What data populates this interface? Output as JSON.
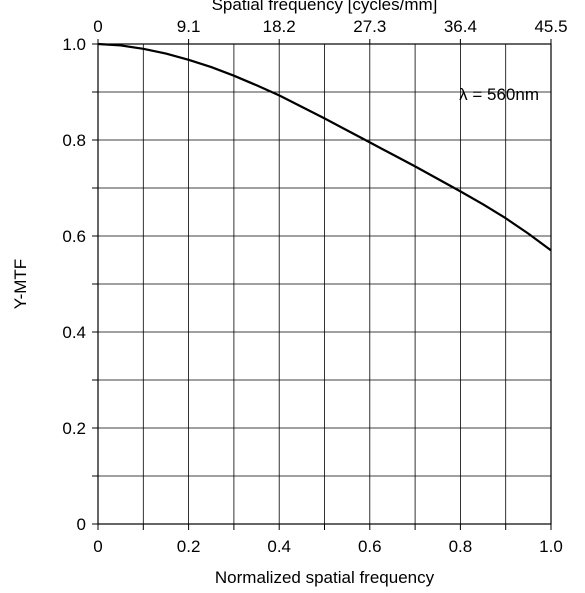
{
  "chart_data": {
    "type": "line",
    "title": "",
    "xlabel": "Normalized spatial frequency",
    "ylabel": "Y-MTF",
    "x2label": "Spatial frequency [cycles/mm]",
    "xlim": [
      0,
      1.0
    ],
    "ylim": [
      0,
      1.0
    ],
    "grid": true,
    "x_ticks": [
      0,
      0.1,
      0.2,
      0.3,
      0.4,
      0.5,
      0.6,
      0.7,
      0.8,
      0.9,
      1.0
    ],
    "x_tick_labels": [
      "0",
      "",
      "0.2",
      "",
      "0.4",
      "",
      "0.6",
      "",
      "0.8",
      "",
      "1.0"
    ],
    "y_ticks": [
      0,
      0.1,
      0.2,
      0.3,
      0.4,
      0.5,
      0.6,
      0.7,
      0.8,
      0.9,
      1.0
    ],
    "y_tick_labels": [
      "0",
      "",
      "0.2",
      "",
      "0.4",
      "",
      "0.6",
      "",
      "0.8",
      "",
      "1.0"
    ],
    "x2_ticks": [
      0,
      0.2,
      0.4,
      0.6,
      0.8,
      1.0
    ],
    "x2_tick_labels": [
      "0",
      "9.1",
      "18.2",
      "27.3",
      "36.4",
      "45.5"
    ],
    "annotation": "λ = 560nm",
    "series": [
      {
        "x": [
          0,
          0.05,
          0.1,
          0.15,
          0.2,
          0.25,
          0.3,
          0.35,
          0.4,
          0.45,
          0.5,
          0.55,
          0.6,
          0.65,
          0.7,
          0.75,
          0.8,
          0.85,
          0.9,
          0.95,
          1.0
        ],
        "values": [
          1.0,
          0.997,
          0.99,
          0.98,
          0.967,
          0.952,
          0.934,
          0.914,
          0.893,
          0.869,
          0.845,
          0.82,
          0.795,
          0.77,
          0.745,
          0.719,
          0.693,
          0.666,
          0.637,
          0.605,
          0.57
        ]
      }
    ],
    "colors": {
      "line": "#000000",
      "grid": "#000000",
      "frame": "#000000"
    }
  }
}
